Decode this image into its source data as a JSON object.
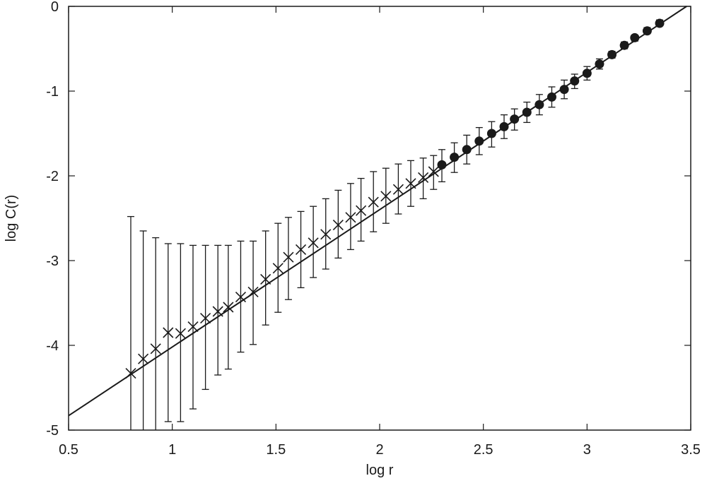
{
  "chart_data": {
    "type": "scatter",
    "title": "",
    "xlabel": "log r",
    "ylabel": "log C(r)",
    "xlim": [
      0.5,
      3.5
    ],
    "ylim": [
      -5,
      0
    ],
    "xticks": [
      0.5,
      1,
      1.5,
      2,
      2.5,
      3,
      3.5
    ],
    "xtick_labels": [
      "0.5",
      "1",
      "1.5",
      "2",
      "2.5",
      "3",
      "3.5"
    ],
    "yticks": [
      0,
      -1,
      -2,
      -3,
      -4,
      -5
    ],
    "ytick_labels": [
      "0",
      "-1",
      "-2",
      "-3",
      "-4",
      "-5"
    ],
    "grid": false,
    "legend": "none",
    "series": [
      {
        "marker": "cross",
        "color": "#1a1a1a",
        "x": [
          0.8,
          0.86,
          0.92,
          0.98,
          1.04,
          1.1,
          1.16,
          1.22,
          1.27,
          1.33,
          1.39,
          1.45,
          1.51,
          1.56,
          1.62,
          1.68,
          1.74,
          1.8,
          1.86,
          1.91,
          1.97,
          2.03,
          2.09,
          2.15,
          2.21,
          2.26
        ],
        "y": [
          -4.33,
          -4.16,
          -4.04,
          -3.85,
          -3.86,
          -3.78,
          -3.68,
          -3.6,
          -3.55,
          -3.43,
          -3.37,
          -3.22,
          -3.09,
          -2.96,
          -2.87,
          -2.79,
          -2.69,
          -2.58,
          -2.49,
          -2.41,
          -2.31,
          -2.24,
          -2.16,
          -2.09,
          -2.02,
          -1.95
        ],
        "err_high": [
          -2.48,
          -2.65,
          -2.73,
          -2.8,
          -2.8,
          -2.82,
          -2.82,
          -2.82,
          -2.82,
          -2.77,
          -2.77,
          -2.65,
          -2.56,
          -2.49,
          -2.42,
          -2.36,
          -2.27,
          -2.17,
          -2.09,
          -2.03,
          -1.95,
          -1.91,
          -1.86,
          -1.82,
          -1.79,
          -1.76
        ],
        "err_low": [
          -5.0,
          -5.0,
          -5.0,
          -4.9,
          -4.9,
          -4.75,
          -4.52,
          -4.35,
          -4.28,
          -4.08,
          -3.99,
          -3.76,
          -3.61,
          -3.46,
          -3.32,
          -3.2,
          -3.1,
          -2.97,
          -2.87,
          -2.77,
          -2.66,
          -2.56,
          -2.45,
          -2.36,
          -2.27,
          -2.16
        ]
      },
      {
        "marker": "filled-circle",
        "color": "#1a1a1a",
        "x": [
          2.3,
          2.36,
          2.42,
          2.48,
          2.54,
          2.6,
          2.65,
          2.71,
          2.77,
          2.83,
          2.89,
          2.94,
          3.0,
          3.06,
          3.12,
          3.18,
          3.23,
          3.29,
          3.35
        ],
        "y": [
          -1.87,
          -1.78,
          -1.69,
          -1.59,
          -1.5,
          -1.42,
          -1.33,
          -1.25,
          -1.16,
          -1.07,
          -0.98,
          -0.88,
          -0.79,
          -0.68,
          -0.57,
          -0.46,
          -0.37,
          -0.29,
          -0.2
        ],
        "err_high": [
          -1.69,
          -1.61,
          -1.52,
          -1.43,
          -1.36,
          -1.28,
          -1.21,
          -1.13,
          -1.04,
          -0.95,
          -0.87,
          -0.8,
          -0.71,
          -0.62,
          -0.53,
          -0.42,
          -0.34,
          -0.25,
          -0.16
        ],
        "err_low": [
          -2.07,
          -1.96,
          -1.86,
          -1.75,
          -1.66,
          -1.56,
          -1.46,
          -1.37,
          -1.28,
          -1.19,
          -1.09,
          -0.97,
          -0.87,
          -0.74,
          -0.61,
          -0.5,
          -0.41,
          -0.32,
          -0.23
        ]
      }
    ],
    "fit_line": {
      "color": "#1a1a1a",
      "points": [
        [
          0.5,
          -4.83
        ],
        [
          3.48,
          0.0
        ]
      ]
    }
  }
}
